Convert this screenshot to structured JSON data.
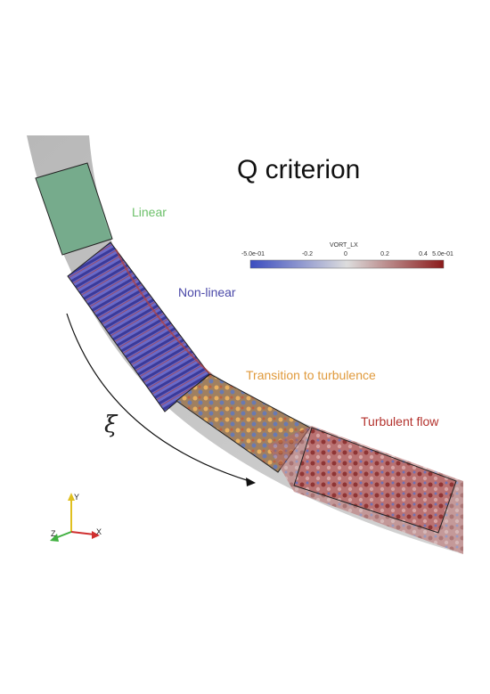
{
  "title": "Q criterion",
  "regions": {
    "linear": "Linear",
    "nonlinear": "Non-linear",
    "transition": "Transition to turbulence",
    "turbulent": "Turbulent flow"
  },
  "flow_direction_symbol": "ξ",
  "colorbar": {
    "title": "VORT_LX",
    "ticks": [
      "-5.0e-01",
      "-0.2",
      "0",
      "0.2",
      "0.4",
      "5.0e-01"
    ],
    "min_color": "#3b4cc0",
    "mid_color": "#dddddd",
    "max_color": "#8b1a1a"
  },
  "axes_triad": {
    "x": "X",
    "y": "Y",
    "z": "Z"
  },
  "colors": {
    "linear_region": "#6aa884",
    "nonlinear_region": "#5a5ab4",
    "transition_region": "#b58a4e",
    "turbulent_region": "#b05050"
  }
}
